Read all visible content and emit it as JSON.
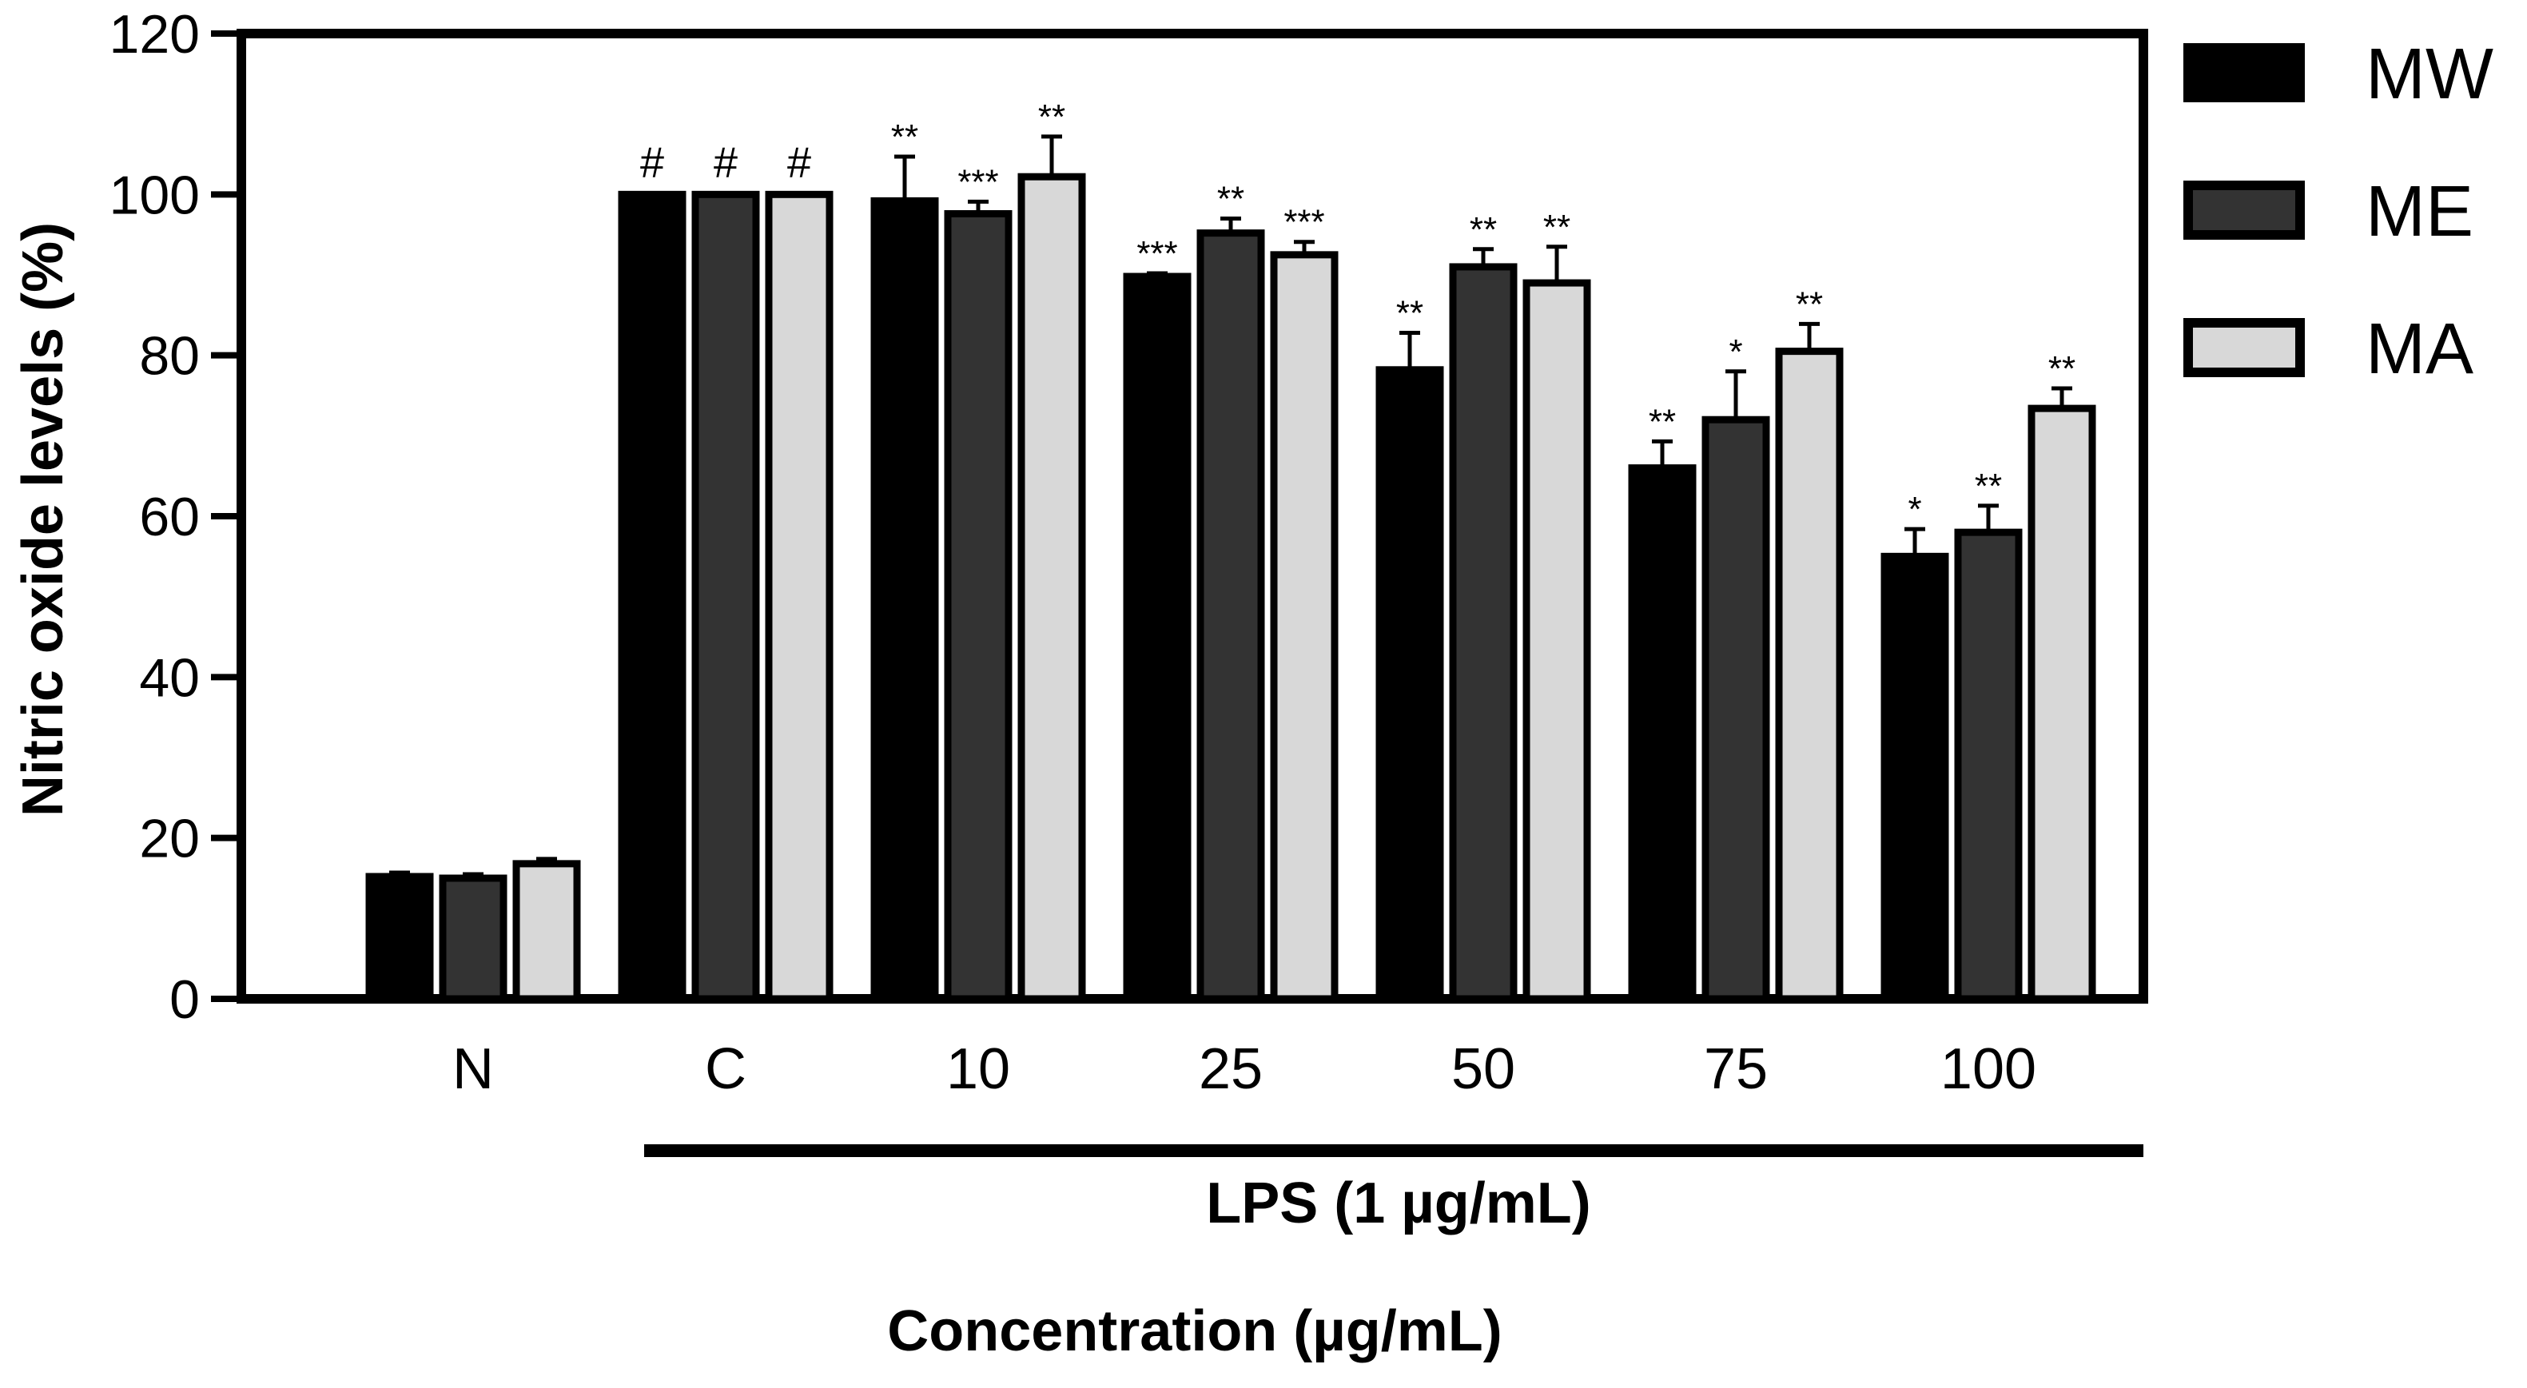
{
  "chart_data": {
    "type": "bar",
    "title": "",
    "ylabel": "Nitric oxide levels (%)",
    "xlabel": "Concentration (µg/mL)",
    "bracket_label": "LPS (1 µg/mL)",
    "ylim": [
      0,
      120
    ],
    "yticks": [
      0,
      20,
      40,
      60,
      80,
      100,
      120
    ],
    "categories": [
      "N",
      "C",
      "10",
      "25",
      "50",
      "75",
      "100"
    ],
    "series": [
      {
        "name": "MW",
        "color": "#000000",
        "values": [
          15.2,
          100,
          99.2,
          89.8,
          78.2,
          66.0,
          55.0
        ],
        "errors": [
          0.5,
          0,
          5.5,
          0.4,
          4.6,
          3.3,
          3.4
        ],
        "sig": [
          "",
          "#",
          "**",
          "***",
          "**",
          "**",
          "*"
        ]
      },
      {
        "name": "ME",
        "color": "#333333",
        "values": [
          15.0,
          100,
          97.6,
          95.2,
          91.0,
          72.0,
          58.0
        ],
        "errors": [
          0.5,
          0,
          1.5,
          1.8,
          2.2,
          6.0,
          3.3
        ],
        "sig": [
          "",
          "#",
          "***",
          "**",
          "**",
          "*",
          "**"
        ]
      },
      {
        "name": "MA",
        "color": "#d8d8d8",
        "values": [
          16.8,
          100,
          102.2,
          92.5,
          89.0,
          80.5,
          73.4
        ],
        "errors": [
          0.6,
          0,
          5.0,
          1.6,
          4.5,
          3.4,
          2.5
        ],
        "sig": [
          "",
          "#",
          "**",
          "***",
          "**",
          "**",
          "**"
        ]
      }
    ],
    "legend": [
      "MW",
      "ME",
      "MA"
    ],
    "legend_position": "right"
  }
}
